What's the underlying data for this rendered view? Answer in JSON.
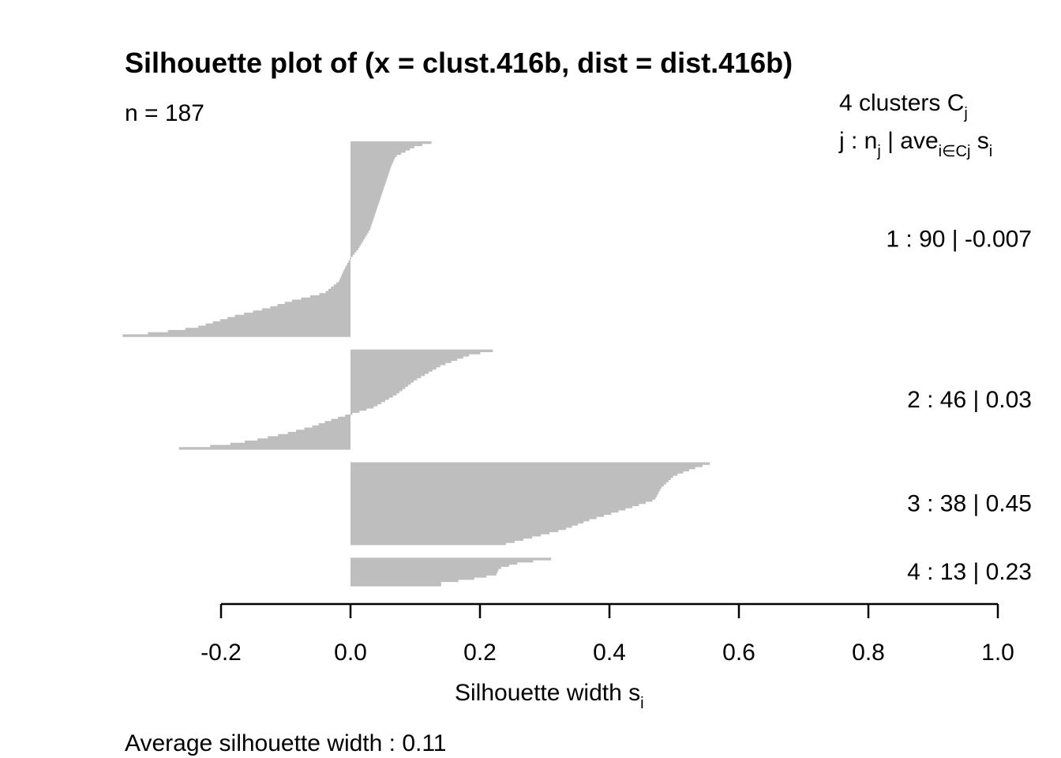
{
  "chart_data": {
    "type": "bar",
    "title": "Silhouette plot of (x = clust.416b, dist = dist.416b)",
    "n_label": "n = 187",
    "legend": {
      "header_line1_prefix": "4  clusters  C",
      "header_line1_sub": "j",
      "header_line2": {
        "prefix": "j :  n",
        "sub1": "j",
        "mid": " | ave",
        "sub2": "i∈Cj",
        "mid2": "  s",
        "sub3": "i"
      }
    },
    "xlabel_text": "Silhouette width s",
    "xlabel_sub": "i",
    "xlim": [
      -0.2,
      1.0
    ],
    "ticks": [
      -0.2,
      0.0,
      0.2,
      0.4,
      0.6,
      0.8,
      1.0
    ],
    "tick_labels": [
      "-0.2",
      "0.0",
      "0.2",
      "0.4",
      "0.6",
      "0.8",
      "1.0"
    ],
    "average_text": "Average silhouette width :  0.11",
    "clusters": [
      {
        "label": "1 :   90  |  -0.007",
        "n": 90,
        "width_profile": [
          [
            0,
            0.125
          ],
          [
            0.02,
            0.1
          ],
          [
            0.07,
            0.07
          ],
          [
            0.12,
            0.063
          ],
          [
            0.2,
            0.055
          ],
          [
            0.3,
            0.045
          ],
          [
            0.45,
            0.03
          ],
          [
            0.55,
            0.012
          ],
          [
            0.6,
            0.0
          ],
          [
            0.66,
            -0.01
          ],
          [
            0.72,
            -0.018
          ],
          [
            0.78,
            -0.04
          ],
          [
            0.82,
            -0.09
          ],
          [
            0.86,
            -0.13
          ],
          [
            0.9,
            -0.18
          ],
          [
            0.93,
            -0.21
          ],
          [
            0.96,
            -0.24
          ],
          [
            0.985,
            -0.3
          ],
          [
            1.0,
            -0.352
          ]
        ]
      },
      {
        "label": "2 :   46  |  0.03",
        "n": 46,
        "width_profile": [
          [
            0,
            0.22
          ],
          [
            0.04,
            0.185
          ],
          [
            0.15,
            0.14
          ],
          [
            0.3,
            0.1
          ],
          [
            0.45,
            0.07
          ],
          [
            0.58,
            0.035
          ],
          [
            0.65,
            0.0
          ],
          [
            0.7,
            -0.025
          ],
          [
            0.78,
            -0.06
          ],
          [
            0.85,
            -0.1
          ],
          [
            0.92,
            -0.15
          ],
          [
            0.97,
            -0.2
          ],
          [
            1.0,
            -0.265
          ]
        ]
      },
      {
        "label": "3 :   38  |  0.45",
        "n": 38,
        "width_profile": [
          [
            0,
            0.555
          ],
          [
            0.06,
            0.53
          ],
          [
            0.15,
            0.5
          ],
          [
            0.3,
            0.48
          ],
          [
            0.45,
            0.47
          ],
          [
            0.58,
            0.42
          ],
          [
            0.7,
            0.37
          ],
          [
            0.82,
            0.33
          ],
          [
            0.9,
            0.29
          ],
          [
            1.0,
            0.24
          ]
        ]
      },
      {
        "label": "4 :   13  |  0.23",
        "n": 13,
        "width_profile": [
          [
            0,
            0.31
          ],
          [
            0.15,
            0.26
          ],
          [
            0.35,
            0.23
          ],
          [
            0.6,
            0.225
          ],
          [
            0.8,
            0.18
          ],
          [
            0.9,
            0.14
          ],
          [
            1.0,
            0.14
          ]
        ]
      }
    ]
  }
}
